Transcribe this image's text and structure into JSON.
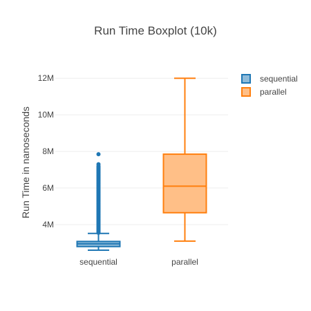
{
  "chart_data": {
    "type": "box",
    "title": "Run Time Boxplot (10k)",
    "xlabel": "",
    "ylabel": "Run Time in nanoseconds",
    "y_ticks": [
      {
        "value": 4000000,
        "label": "4M"
      },
      {
        "value": 6000000,
        "label": "6M"
      },
      {
        "value": 8000000,
        "label": "8M"
      },
      {
        "value": 10000000,
        "label": "10M"
      },
      {
        "value": 12000000,
        "label": "12M"
      }
    ],
    "ylim": [
      2300000,
      12500000
    ],
    "grid": true,
    "legend_position": "top-right",
    "series": [
      {
        "name": "sequential",
        "category": "sequential",
        "color": "#1f77b4",
        "fill": "#8fbbd9",
        "lowerfence": 2600000,
        "q1": 2800000,
        "median": 2950000,
        "q3": 3080000,
        "upperfence": 3520000,
        "outliers": [
          3550000,
          3600000,
          3650000,
          3700000,
          3750000,
          3800000,
          3850000,
          3900000,
          3950000,
          4000000,
          4050000,
          4100000,
          4150000,
          4200000,
          4250000,
          4300000,
          4350000,
          4400000,
          4450000,
          4500000,
          4550000,
          4600000,
          4650000,
          4700000,
          4750000,
          4800000,
          4850000,
          4900000,
          4950000,
          5000000,
          5050000,
          5100000,
          5150000,
          5200000,
          5250000,
          5300000,
          5350000,
          5400000,
          5450000,
          5500000,
          5550000,
          5600000,
          5650000,
          5700000,
          5750000,
          5800000,
          5850000,
          5900000,
          5950000,
          6000000,
          6050000,
          6100000,
          6150000,
          6200000,
          6250000,
          6300000,
          6350000,
          6400000,
          6450000,
          6500000,
          6550000,
          6600000,
          6650000,
          6700000,
          6750000,
          6800000,
          6850000,
          6900000,
          6950000,
          7000000,
          7050000,
          7100000,
          7150000,
          7200000,
          7300000,
          7850000
        ]
      },
      {
        "name": "parallel",
        "category": "parallel",
        "color": "#ff7f0e",
        "fill": "#ffbf87",
        "lowerfence": 3100000,
        "q1": 4650000,
        "median": 6100000,
        "q3": 7850000,
        "upperfence": 12000000,
        "outliers": []
      }
    ]
  }
}
